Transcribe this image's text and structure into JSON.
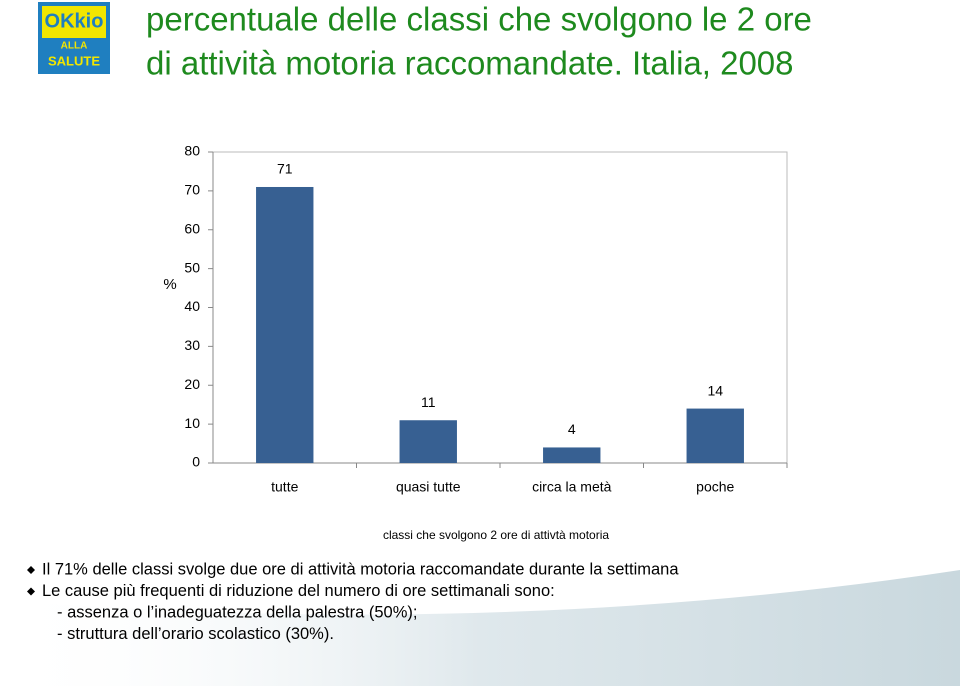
{
  "header": {
    "title_lines": [
      "percentuale delle classi che svolgono le 2 ore",
      "di attività motoria raccomandate. Italia, 2008"
    ],
    "logo_lines": [
      "OKkio",
      "ALLA",
      "SALUTE"
    ]
  },
  "chart_data": {
    "type": "bar",
    "ylabel": "%",
    "xlabel": "classi che svolgono 2 ore di attivtà motoria",
    "categories": [
      "tutte",
      "quasi tutte",
      "circa la metà",
      "poche"
    ],
    "values": [
      71,
      11,
      4,
      14
    ],
    "color": "#376092",
    "ylim": [
      0,
      80
    ],
    "yticks": [
      0,
      10,
      20,
      30,
      40,
      50,
      60,
      70,
      80
    ],
    "grid": false
  },
  "bullets": [
    "Il 71% delle classi svolge due ore di attività motoria raccomandate durante la settimana",
    "Le cause più frequenti di riduzione del numero di ore settimanali sono:"
  ],
  "sub_items": [
    "- assenza o l’inadeguatezza della palestra (50%);",
    "- struttura dell’orario scolastico (30%)."
  ]
}
